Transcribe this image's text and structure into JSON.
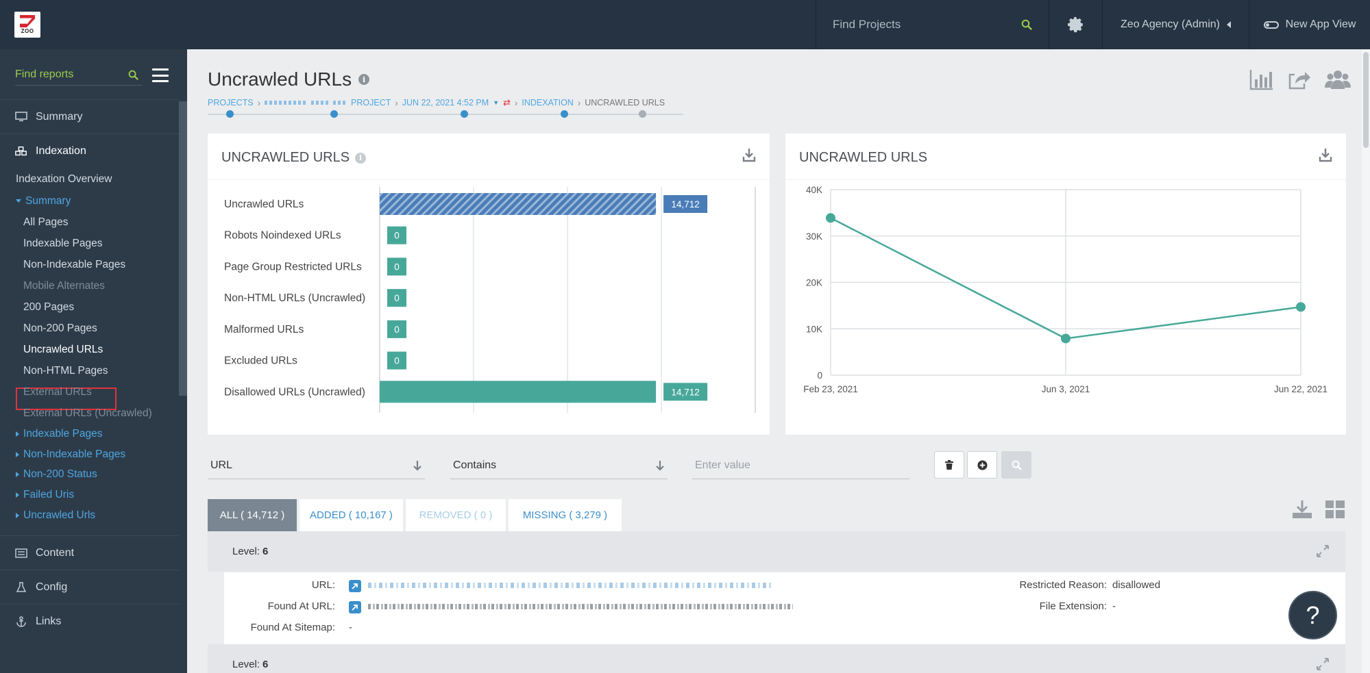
{
  "topbar": {
    "logo_text": "ZOO",
    "search_placeholder": "Find Projects",
    "agency": "Zeo Agency (Admin)",
    "new_view": "New App View"
  },
  "sidebar": {
    "search_placeholder": "Find reports",
    "sections": {
      "summary": "Summary",
      "indexation": "Indexation",
      "content": "Content",
      "config": "Config",
      "links": "Links"
    },
    "indexation_overview": "Indexation Overview",
    "summary_group": "Summary",
    "summary_items": [
      "All Pages",
      "Indexable Pages",
      "Non-Indexable Pages",
      "Mobile Alternates",
      "200 Pages",
      "Non-200 Pages",
      "Uncrawled URLs",
      "Non-HTML Pages",
      "External URLs",
      "External URLs (Uncrawled)"
    ],
    "groups": [
      "Indexable Pages",
      "Non-Indexable Pages",
      "Non-200 Status",
      "Failed Uris",
      "Uncrawled Urls"
    ]
  },
  "page": {
    "title": "Uncrawled URLs",
    "breadcrumb": {
      "projects": "PROJECTS",
      "project": "PROJECT",
      "date": "JUN 22, 2021 4:52 PM",
      "indexation": "INDEXATION",
      "current": "UNCRAWLED URLS"
    }
  },
  "bar_panel": {
    "title": "UNCRAWLED URLS"
  },
  "line_panel": {
    "title": "UNCRAWLED URLS"
  },
  "chart_data": [
    {
      "type": "bar",
      "orientation": "horizontal",
      "categories": [
        "Uncrawled URLs",
        "Robots Noindexed URLs",
        "Page Group Restricted URLs",
        "Non-HTML URLs (Uncrawled)",
        "Malformed URLs",
        "Excluded URLs",
        "Disallowed URLs (Uncrawled)"
      ],
      "values": [
        14712,
        0,
        0,
        0,
        0,
        0,
        14712
      ],
      "value_labels": [
        "14,712",
        "0",
        "0",
        "0",
        "0",
        "0",
        "14,712"
      ],
      "colors": [
        "#4a7db8",
        "#47a89a",
        "#47a89a",
        "#47a89a",
        "#47a89a",
        "#47a89a",
        "#47a89a"
      ],
      "xlim": [
        0,
        20000
      ],
      "grid": true
    },
    {
      "type": "line",
      "x": [
        "Feb 23, 2021",
        "Jun 3, 2021",
        "Jun 22, 2021"
      ],
      "y": [
        33900,
        7900,
        14712
      ],
      "yticks": [
        "0",
        "10K",
        "20K",
        "30K",
        "40K"
      ],
      "ylim": [
        0,
        40000
      ],
      "color": "#47a89a",
      "grid": true
    }
  ],
  "filters": {
    "field": "URL",
    "operator": "Contains",
    "value_placeholder": "Enter value"
  },
  "tabs": [
    {
      "label": "ALL ( 14,712 )"
    },
    {
      "label": "ADDED ( 10,167 )"
    },
    {
      "label": "REMOVED ( 0 )"
    },
    {
      "label": "MISSING ( 3,279 )"
    }
  ],
  "results": {
    "level_label": "Level:",
    "level_value": "6",
    "url_label": "URL:",
    "found_at_url_label": "Found At URL:",
    "found_at_sitemap_label": "Found At Sitemap:",
    "found_at_sitemap_value": "-",
    "restricted_reason_label": "Restricted Reason:",
    "restricted_reason_value": "disallowed",
    "file_extension_label": "File Extension:",
    "file_extension_value": "-",
    "level2_value": "6"
  },
  "help_label": "?"
}
